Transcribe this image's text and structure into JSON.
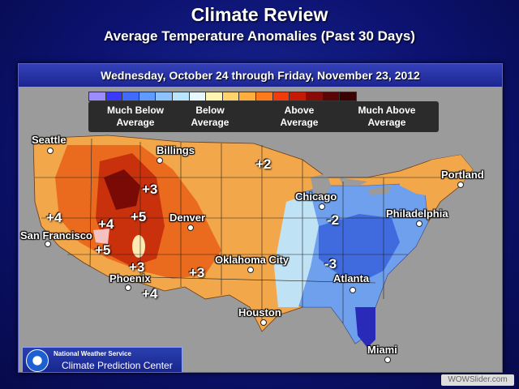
{
  "header": {
    "title": "Climate Review",
    "subtitle": "Average Temperature Anomalies (Past 30 Days)"
  },
  "date_range": "Wednesday, October 24 through Friday, November 23, 2012",
  "legend": {
    "colors": [
      "#9b8cff",
      "#3a3aff",
      "#3f6bff",
      "#5f9bff",
      "#8cc3ff",
      "#b8e4ff",
      "#e8f8ff",
      "#fff5b0",
      "#ffd36b",
      "#ffad3d",
      "#ff7a1a",
      "#f03c0a",
      "#c41a06",
      "#8a0a06",
      "#5a0606",
      "#3a0202"
    ],
    "labels": [
      "Much Below Average",
      "Below Average",
      "Above Average",
      "Much Above Average"
    ]
  },
  "cities": [
    "Seattle",
    "Billings",
    "Portland",
    "Chicago",
    "Philadelphia",
    "San Francisco",
    "Denver",
    "Oklahoma City",
    "Atlanta",
    "Phoenix",
    "Houston",
    "Miami"
  ],
  "anomalies": [
    "+2",
    "+3",
    "+4",
    "+5",
    "+4",
    "+5",
    "+3",
    "+3",
    "+4",
    "-2",
    "-3"
  ],
  "credit": {
    "agency": "National Weather Service",
    "center": "Climate Prediction Center"
  },
  "watermark": "WOWSlider.com"
}
